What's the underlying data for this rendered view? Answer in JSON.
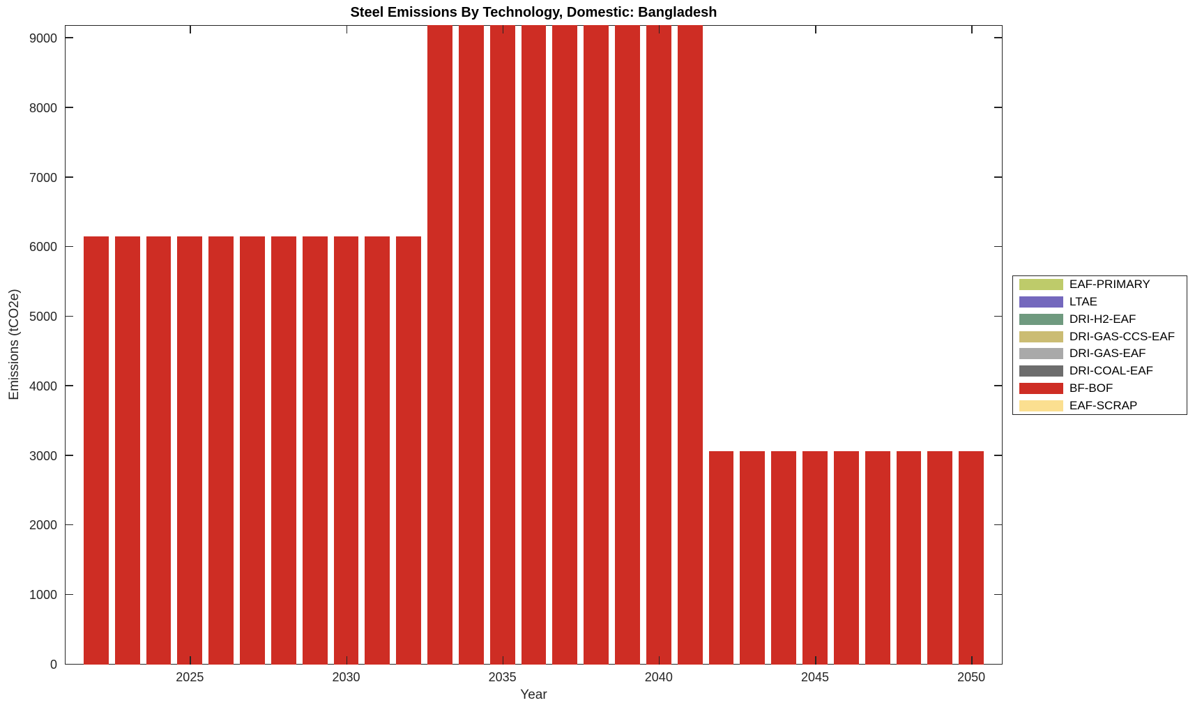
{
  "chart_data": {
    "type": "bar",
    "title": "Steel Emissions By Technology, Domestic: Bangladesh",
    "xlabel": "Year",
    "ylabel": "Emissions (tCO2e)",
    "xlim": [
      2021,
      2051
    ],
    "ylim": [
      0,
      9190
    ],
    "x_ticks": [
      2025,
      2030,
      2035,
      2040,
      2045,
      2050
    ],
    "y_ticks": [
      0,
      1000,
      2000,
      3000,
      4000,
      5000,
      6000,
      7000,
      8000,
      9000
    ],
    "grid": false,
    "tick_direction": "in",
    "bar_width_years": 0.8,
    "visible_series": "BF-BOF",
    "bar_color": "#CE2D24",
    "years": [
      2022,
      2023,
      2024,
      2025,
      2026,
      2027,
      2028,
      2029,
      2030,
      2031,
      2032,
      2033,
      2034,
      2035,
      2036,
      2037,
      2038,
      2039,
      2040,
      2041,
      2042,
      2043,
      2044,
      2045,
      2046,
      2047,
      2048,
      2049,
      2050
    ],
    "values": [
      6150,
      6150,
      6150,
      6150,
      6150,
      6150,
      6150,
      6150,
      6150,
      6150,
      6150,
      null,
      null,
      null,
      null,
      null,
      null,
      null,
      null,
      null,
      3065,
      3065,
      3065,
      3065,
      3065,
      3065,
      3065,
      3065,
      3065
    ],
    "clipped_note": "Bars for 2033-2041 exceed the y-axis maximum (~9190) and are clipped at the top of the plot",
    "legend": {
      "position": "outside-right",
      "entries": [
        {
          "label": "EAF-PRIMARY",
          "color": "#BECB6A"
        },
        {
          "label": "LTAE",
          "color": "#7468BD"
        },
        {
          "label": "DRI-H2-EAF",
          "color": "#6F9A7F"
        },
        {
          "label": "DRI-GAS-CCS-EAF",
          "color": "#CBBC73"
        },
        {
          "label": "DRI-GAS-EAF",
          "color": "#A9A9A9"
        },
        {
          "label": "DRI-COAL-EAF",
          "color": "#6D6D6D"
        },
        {
          "label": "BF-BOF",
          "color": "#CE2D24"
        },
        {
          "label": "EAF-SCRAP",
          "color": "#FBDF90"
        }
      ]
    }
  }
}
